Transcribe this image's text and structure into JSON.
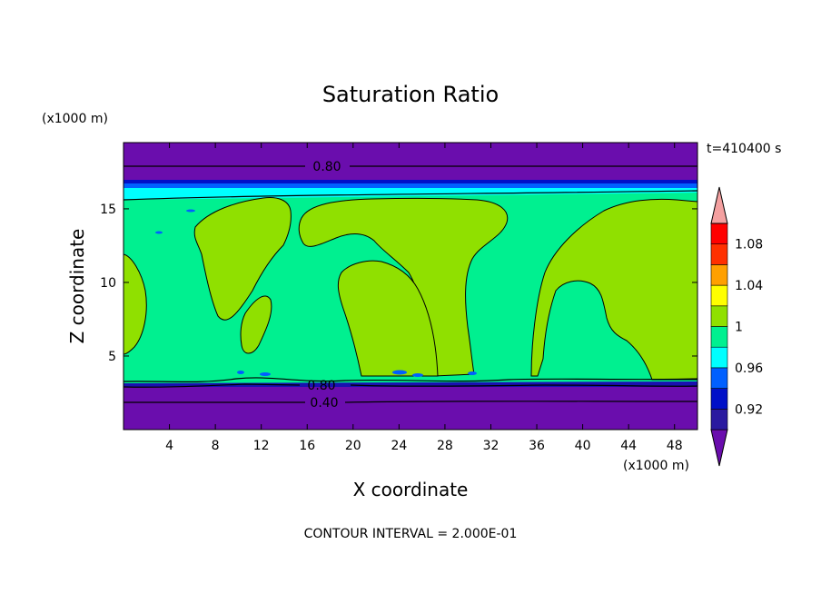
{
  "chart_data": {
    "type": "heatmap",
    "title": "Saturation Ratio",
    "xlabel": "X coordinate",
    "ylabel": "Z coordinate",
    "x_unit": "(x1000 m)",
    "y_unit": "(x1000 m)",
    "time_label": "t=410400 s",
    "footer": "CONTOUR INTERVAL = 2.000E-01",
    "xlim": [
      0,
      50
    ],
    "ylim": [
      0,
      19.5
    ],
    "x_ticks": [
      "4",
      "8",
      "12",
      "16",
      "20",
      "24",
      "28",
      "32",
      "36",
      "40",
      "44",
      "48"
    ],
    "x_tick_values": [
      4,
      8,
      12,
      16,
      20,
      24,
      28,
      32,
      36,
      40,
      44,
      48
    ],
    "y_ticks": [
      "5",
      "10",
      "15"
    ],
    "y_tick_values": [
      5,
      10,
      15
    ],
    "colorbar_labels": [
      "1.08",
      "1.04",
      "1",
      "0.96",
      "0.92"
    ],
    "colorbar_label_values": [
      1.08,
      1.04,
      1.0,
      0.96,
      0.92
    ],
    "colorbar_levels": [
      0.9,
      0.92,
      0.94,
      0.96,
      0.98,
      1.0,
      1.02,
      1.04,
      1.06,
      1.08,
      1.1
    ],
    "colorbar_colors": [
      "#6a0dad",
      "#2a1aa0",
      "#0010c8",
      "#0060ff",
      "#00ffff",
      "#00f090",
      "#90e000",
      "#ffff00",
      "#ffa000",
      "#ff3000",
      "#ff0000",
      "#f4a0a0"
    ],
    "contour_labels": [
      {
        "text": "0.80",
        "x": 17.8,
        "z": 18.2
      },
      {
        "text": "0.80",
        "x": 17.2,
        "z": 3.1
      },
      {
        "text": "0.40",
        "x": 17.5,
        "z": 1.8
      }
    ],
    "colors": {
      "purple": "#6a0dad",
      "dark_blue": "#0010c8",
      "blue": "#0060ff",
      "cyan": "#00ffff",
      "green": "#00f090",
      "yellowgreen": "#90e000"
    }
  }
}
